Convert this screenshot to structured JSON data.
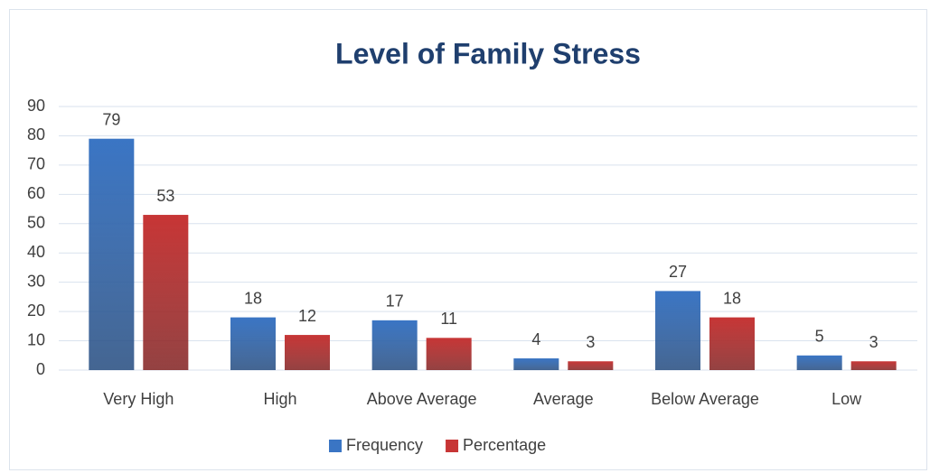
{
  "chart_data": {
    "type": "bar",
    "title": "Level of Family Stress",
    "categories": [
      "Very High",
      "High",
      "Above Average",
      "Average",
      "Below Average",
      "Low"
    ],
    "series": [
      {
        "name": "Frequency",
        "color": "#3a75c4",
        "values": [
          79,
          18,
          17,
          4,
          27,
          5
        ]
      },
      {
        "name": "Percentage",
        "color": "#c73535",
        "values": [
          53,
          12,
          11,
          3,
          18,
          3
        ]
      }
    ],
    "ylim": [
      0,
      90
    ],
    "yticks": [
      0,
      10,
      20,
      30,
      40,
      50,
      60,
      70,
      80,
      90
    ],
    "grid": true,
    "legend": "bottom"
  }
}
